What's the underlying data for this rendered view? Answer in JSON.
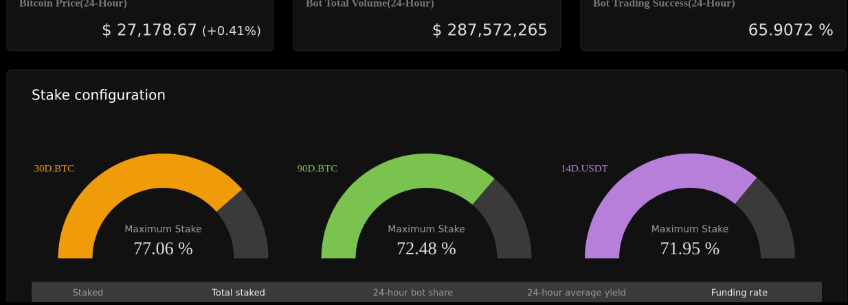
{
  "cards": [
    {
      "title": "Bitcoin Price(24-Hour)",
      "value": "$ 27,178.67",
      "change": "(+0.41%)"
    },
    {
      "title": "Bot Total Volume(24-Hour)",
      "value": "$ 287,572,265"
    },
    {
      "title": "Bot Trading Success(24-Hour)",
      "value": "65.9072 %"
    }
  ],
  "stake": {
    "title": "Stake configuration",
    "gauges": [
      {
        "label": "30D.BTC",
        "color": "#f09c0a",
        "caption": "Maximum Stake",
        "value": 77.06,
        "value_label": "77.06 %"
      },
      {
        "label": "90D.BTC",
        "color": "#7ac34e",
        "caption": "Maximum Stake",
        "value": 72.48,
        "value_label": "72.48 %"
      },
      {
        "label": "14D.USDT",
        "color": "#b77fd9",
        "caption": "Maximum Stake",
        "value": 71.95,
        "value_label": "71.95 %"
      }
    ],
    "columns": [
      "Staked",
      "Total staked",
      "24-hour bot share",
      "24-hour average yield",
      "Funding rate"
    ]
  }
}
